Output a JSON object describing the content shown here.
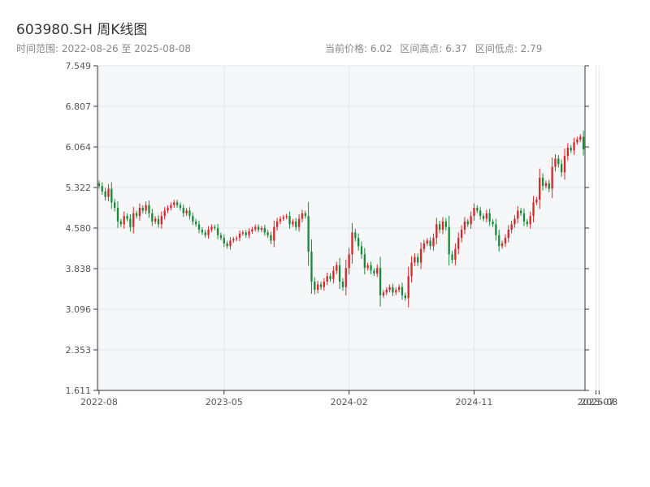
{
  "title": "603980.SH 周K线图",
  "range_text": "时间范围: 2022-08-26 至 2025-08-08",
  "stats": {
    "current": "当前价格: 6.02",
    "high": "区间高点: 6.37",
    "low": "区间低点: 2.79"
  },
  "colors": {
    "up": "#d62728",
    "down": "#1a8a3a",
    "grid": "#e3e6ea",
    "plot_bg": "#f6f7f9",
    "axis": "#333333"
  },
  "chart_data": {
    "type": "candlestick",
    "title": "603980.SH 周K线图",
    "ylim": [
      1.611,
      7.549
    ],
    "yticks": [
      "1.611",
      "2.353",
      "3.096",
      "3.838",
      "4.580",
      "5.322",
      "6.064",
      "6.807",
      "7.549"
    ],
    "xticks": [
      "2022-08",
      "2023-05",
      "2024-02",
      "2024-11",
      "2025-07",
      "2025-08"
    ],
    "xtick_positions": [
      0,
      40,
      80,
      120,
      159,
      160
    ],
    "grid": true,
    "closes": [
      5.35,
      5.25,
      5.15,
      5.3,
      5.05,
      4.95,
      4.7,
      4.65,
      4.8,
      4.75,
      4.6,
      4.85,
      4.8,
      4.95,
      4.9,
      5.0,
      4.85,
      4.7,
      4.75,
      4.65,
      4.8,
      4.9,
      4.95,
      5.0,
      5.05,
      5.0,
      4.95,
      4.85,
      4.9,
      4.8,
      4.7,
      4.65,
      4.55,
      4.5,
      4.45,
      4.55,
      4.6,
      4.58,
      4.45,
      4.4,
      4.3,
      4.25,
      4.35,
      4.38,
      4.4,
      4.48,
      4.5,
      4.45,
      4.52,
      4.56,
      4.6,
      4.55,
      4.58,
      4.5,
      4.45,
      4.35,
      4.6,
      4.7,
      4.75,
      4.78,
      4.8,
      4.65,
      4.7,
      4.6,
      4.75,
      4.85,
      4.8,
      4.15,
      3.6,
      3.45,
      3.55,
      3.5,
      3.6,
      3.7,
      3.65,
      3.8,
      3.9,
      3.6,
      3.5,
      3.85,
      4.1,
      4.5,
      4.4,
      4.25,
      4.1,
      3.85,
      3.9,
      3.8,
      3.75,
      3.85,
      3.35,
      3.4,
      3.45,
      3.5,
      3.4,
      3.45,
      3.5,
      3.35,
      3.3,
      3.7,
      3.95,
      4.05,
      3.95,
      4.2,
      4.3,
      4.35,
      4.25,
      4.4,
      4.65,
      4.55,
      4.7,
      4.6,
      4.1,
      4.0,
      4.2,
      4.4,
      4.55,
      4.7,
      4.65,
      4.8,
      4.95,
      4.9,
      4.8,
      4.75,
      4.85,
      4.7,
      4.65,
      4.45,
      4.25,
      4.3,
      4.4,
      4.55,
      4.65,
      4.75,
      4.9,
      4.85,
      4.7,
      4.65,
      4.8,
      5.05,
      5.1,
      5.5,
      5.35,
      5.4,
      5.3,
      5.7,
      5.85,
      5.75,
      5.6,
      5.9,
      6.05,
      6.0,
      6.15,
      6.2,
      6.25,
      6.02
    ]
  }
}
